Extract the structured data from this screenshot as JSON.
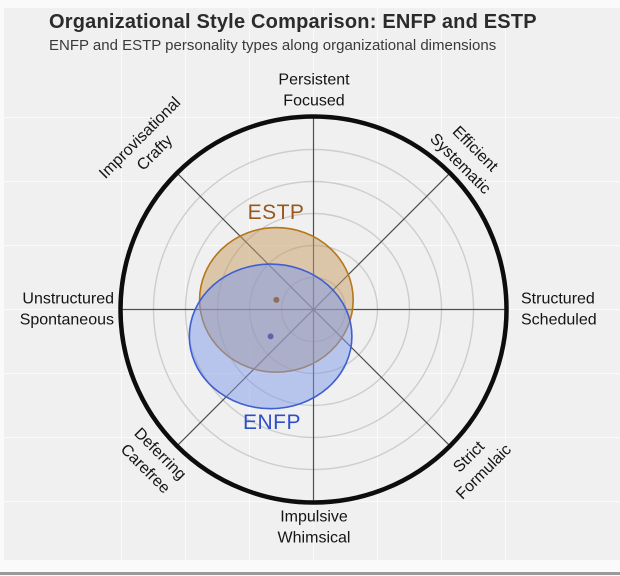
{
  "header": {
    "title": "Organizational Style Comparison: ENFP and ESTP",
    "subtitle": "ENFP and ESTP personality types along organizational dimensions"
  },
  "chart_data": {
    "type": "scatter",
    "subtype": "polar-ellipse-comparison",
    "title": "Organizational Style Comparison: ENFP and ESTP",
    "subtitle": "ENFP and ESTP personality types along organizational dimensions",
    "radial_axis": {
      "rings": [
        0.5,
        1.0,
        1.5,
        2.0,
        2.5,
        3.0
      ],
      "outer": 3.0,
      "grid_on": true
    },
    "axes": [
      {
        "angle_deg": 90,
        "line1": "Persistent",
        "line2": "Focused"
      },
      {
        "angle_deg": 45,
        "line1": "Efficient",
        "line2": "Systematic"
      },
      {
        "angle_deg": 0,
        "line1": "Structured",
        "line2": "Scheduled"
      },
      {
        "angle_deg": -45,
        "line1": "Strict",
        "line2": "Formulaic"
      },
      {
        "angle_deg": -90,
        "line1": "Impulsive",
        "line2": "Whimsical"
      },
      {
        "angle_deg": -135,
        "line1": "Deferring",
        "line2": "Carefree"
      },
      {
        "angle_deg": 180,
        "line1": "Unstructured",
        "line2": "Spontaneous"
      },
      {
        "angle_deg": 135,
        "line1": "Improvisational",
        "line2": "Crafty"
      }
    ],
    "series": [
      {
        "name": "ESTP",
        "center": {
          "x": -0.58,
          "y": 0.15
        },
        "radius": {
          "x": 1.2,
          "y": 1.13
        },
        "fill": "#c69c63",
        "fill_opacity": 0.5,
        "stroke": "#b5771a",
        "label_color": "#99571b",
        "dot_color": "#8d6e56"
      },
      {
        "name": "ENFP",
        "center": {
          "x": -0.67,
          "y": -0.42
        },
        "radius": {
          "x": 1.27,
          "y": 1.13
        },
        "fill": "#7e97e8",
        "fill_opacity": 0.5,
        "stroke": "#3e5fd0",
        "label_color": "#2e4fc7",
        "dot_color": "#5f64ad"
      }
    ],
    "colors": {
      "panel_background": "#f0f0f0",
      "ring_gridline": "#cdcdcd",
      "spoke": "#4d4d4d",
      "outer_circle": "#0d0d0d",
      "axis_label": "#141414"
    }
  }
}
